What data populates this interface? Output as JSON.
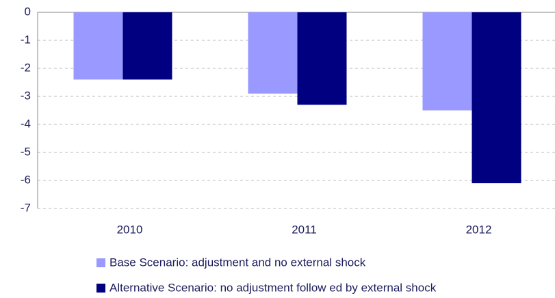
{
  "chart_data": {
    "type": "bar",
    "categories": [
      "2010",
      "2011",
      "2012"
    ],
    "series": [
      {
        "name": "Base Scenario: adjustment and no external shock",
        "color": "#9999ff",
        "values": [
          -2.4,
          -2.9,
          -3.5
        ]
      },
      {
        "name": "Alternative Scenario: no adjustment follow ed by external shock",
        "color": "#000080",
        "values": [
          -2.4,
          -3.3,
          -6.1
        ]
      }
    ],
    "ylim": [
      -7,
      0
    ],
    "yticks": [
      0,
      -1,
      -2,
      -3,
      -4,
      -5,
      -6,
      -7
    ],
    "grid": true,
    "legend": "bottom"
  }
}
